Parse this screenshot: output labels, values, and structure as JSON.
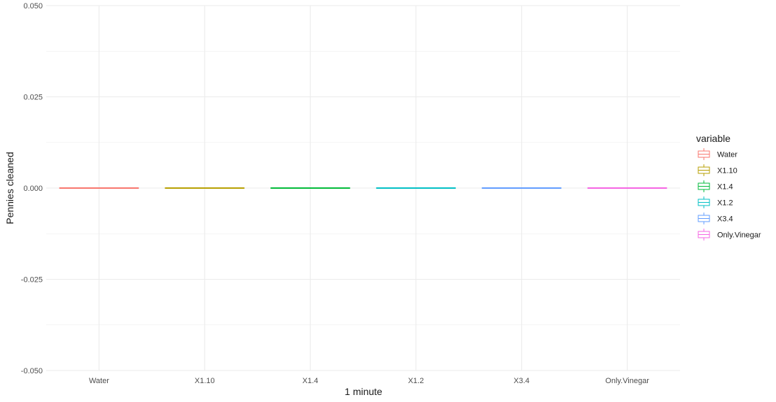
{
  "chart_data": {
    "type": "boxplot",
    "categories": [
      "Water",
      "X1.10",
      "X1.4",
      "X1.2",
      "X3.4",
      "Only.Vinegar"
    ],
    "series": [
      {
        "name": "Water",
        "color": "#F8766D",
        "min": 0,
        "q1": 0,
        "median": 0,
        "q3": 0,
        "max": 0
      },
      {
        "name": "X1.10",
        "color": "#B79F00",
        "min": 0,
        "q1": 0,
        "median": 0,
        "q3": 0,
        "max": 0
      },
      {
        "name": "X1.4",
        "color": "#00BA38",
        "min": 0,
        "q1": 0,
        "median": 0,
        "q3": 0,
        "max": 0
      },
      {
        "name": "X1.2",
        "color": "#00BFC4",
        "min": 0,
        "q1": 0,
        "median": 0,
        "q3": 0,
        "max": 0
      },
      {
        "name": "X3.4",
        "color": "#619CFF",
        "min": 0,
        "q1": 0,
        "median": 0,
        "q3": 0,
        "max": 0
      },
      {
        "name": "Only.Vinegar",
        "color": "#F564E3",
        "min": 0,
        "q1": 0,
        "median": 0,
        "q3": 0,
        "max": 0
      }
    ],
    "xlabel": "1 minute",
    "ylabel": "Pennies cleaned",
    "ylim": [
      -0.05,
      0.05
    ],
    "yticks": [
      -0.05,
      -0.025,
      0,
      0.025,
      0.05
    ],
    "ytick_labels": [
      "-0.050",
      "-0.025",
      "0.000",
      "0.025",
      "0.050"
    ],
    "grid": true,
    "legend": {
      "title": "variable",
      "position": "right"
    }
  }
}
